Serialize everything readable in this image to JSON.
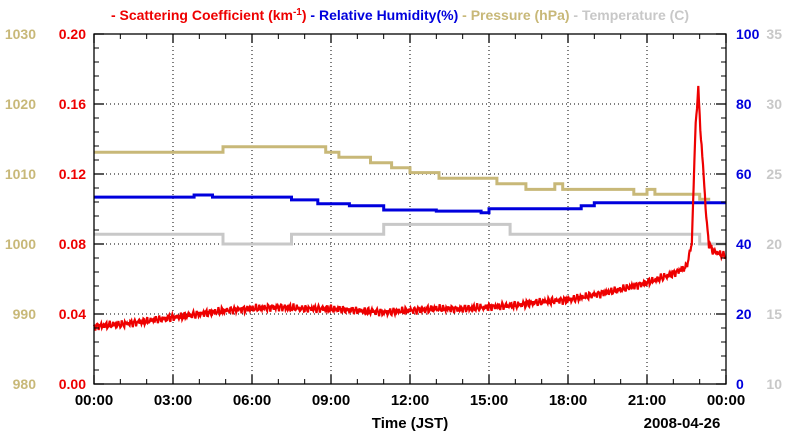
{
  "chart_data": {
    "type": "line",
    "title": "",
    "xlabel": "Time (JST)",
    "date_label": "2008-04-26",
    "x_ticks": [
      "00:00",
      "03:00",
      "06:00",
      "09:00",
      "12:00",
      "15:00",
      "18:00",
      "21:00",
      "00:00"
    ],
    "xlim_hours": [
      0,
      24
    ],
    "grid": true,
    "legend": {
      "position": "top",
      "entries": [
        {
          "key": "scattering",
          "bullet": "-",
          "text": "Scattering Coefficient (km",
          "sup": "-1",
          "suffix": ")"
        },
        {
          "key": "humidity",
          "bullet": "-",
          "text": "Relative Humidity(%)"
        },
        {
          "key": "pressure",
          "bullet": "-",
          "text": "Pressure (hPa)"
        },
        {
          "key": "temperature",
          "bullet": "-",
          "text": "Temperature (C)"
        }
      ]
    },
    "axes": {
      "pressure": {
        "side": "left-outer",
        "range": [
          980,
          1030
        ],
        "ticks": [
          "980",
          "990",
          "1000",
          "1010",
          "1020",
          "1030"
        ],
        "color": "#c8b878"
      },
      "scattering": {
        "side": "left-inner",
        "range": [
          0,
          0.2
        ],
        "ticks": [
          "0.00",
          "0.04",
          "0.08",
          "0.12",
          "0.16",
          "0.20"
        ],
        "color": "#ee0000"
      },
      "humidity": {
        "side": "right-inner",
        "range": [
          0,
          100
        ],
        "ticks": [
          "0",
          "20",
          "40",
          "60",
          "80",
          "100"
        ],
        "color": "#0000dd"
      },
      "temperature": {
        "side": "right-outer",
        "range": [
          10,
          35
        ],
        "ticks": [
          "10",
          "15",
          "20",
          "25",
          "30",
          "35"
        ],
        "color": "#c8c8c8"
      }
    },
    "series": [
      {
        "name": "Pressure (hPa)",
        "axis": "pressure",
        "color": "#c8b878",
        "style": "step",
        "points": [
          [
            0,
            1013.1
          ],
          [
            4.9,
            1013.1
          ],
          [
            4.9,
            1013.9
          ],
          [
            8.8,
            1013.9
          ],
          [
            8.8,
            1013.1
          ],
          [
            9.3,
            1013.1
          ],
          [
            9.3,
            1012.4
          ],
          [
            10.5,
            1012.4
          ],
          [
            10.5,
            1011.6
          ],
          [
            11.3,
            1011.6
          ],
          [
            11.3,
            1010.9
          ],
          [
            12.0,
            1010.9
          ],
          [
            12.0,
            1010.2
          ],
          [
            13.1,
            1010.2
          ],
          [
            13.1,
            1009.4
          ],
          [
            15.3,
            1009.4
          ],
          [
            15.3,
            1008.6
          ],
          [
            16.4,
            1008.6
          ],
          [
            16.4,
            1007.8
          ],
          [
            17.5,
            1007.8
          ],
          [
            17.5,
            1008.6
          ],
          [
            17.8,
            1008.6
          ],
          [
            17.8,
            1007.8
          ],
          [
            20.5,
            1007.8
          ],
          [
            20.5,
            1007.1
          ],
          [
            21.0,
            1007.1
          ],
          [
            21.0,
            1007.8
          ],
          [
            21.3,
            1007.8
          ],
          [
            21.3,
            1007.1
          ],
          [
            23.0,
            1007.1
          ],
          [
            23.0,
            1006.4
          ],
          [
            23.4,
            1006.4
          ]
        ]
      },
      {
        "name": "Relative Humidity(%)",
        "axis": "humidity",
        "color": "#0000dd",
        "style": "step",
        "points": [
          [
            0,
            53.4
          ],
          [
            3.8,
            53.4
          ],
          [
            3.8,
            54.0
          ],
          [
            4.5,
            54.0
          ],
          [
            4.5,
            53.4
          ],
          [
            7.5,
            53.4
          ],
          [
            7.5,
            52.6
          ],
          [
            8.5,
            52.6
          ],
          [
            8.5,
            51.5
          ],
          [
            9.7,
            51.5
          ],
          [
            9.7,
            50.9
          ],
          [
            11.0,
            50.9
          ],
          [
            11.0,
            49.7
          ],
          [
            13.0,
            49.7
          ],
          [
            13.0,
            49.4
          ],
          [
            14.7,
            49.4
          ],
          [
            14.7,
            48.9
          ],
          [
            15.0,
            48.9
          ],
          [
            15.0,
            50.1
          ],
          [
            18.5,
            50.1
          ],
          [
            18.5,
            50.9
          ],
          [
            19.0,
            50.9
          ],
          [
            19.0,
            51.8
          ],
          [
            24,
            51.8
          ]
        ]
      },
      {
        "name": "Temperature (C)",
        "axis": "temperature",
        "color": "#c8c8c8",
        "style": "step",
        "points": [
          [
            0,
            20.7
          ],
          [
            4.9,
            20.7
          ],
          [
            4.9,
            20.0
          ],
          [
            7.5,
            20.0
          ],
          [
            7.5,
            20.7
          ],
          [
            11.0,
            20.7
          ],
          [
            11.0,
            21.4
          ],
          [
            15.8,
            21.4
          ],
          [
            15.8,
            20.7
          ],
          [
            23.0,
            20.7
          ],
          [
            23.0,
            20.0
          ],
          [
            24,
            20.0
          ]
        ]
      },
      {
        "name": "Scattering Coefficient (km-1)",
        "axis": "scattering",
        "color": "#ee0000",
        "style": "line",
        "points": [
          [
            0,
            0.033
          ],
          [
            1,
            0.034
          ],
          [
            2,
            0.036
          ],
          [
            3,
            0.038
          ],
          [
            4,
            0.04
          ],
          [
            5,
            0.042
          ],
          [
            6,
            0.043
          ],
          [
            7,
            0.044
          ],
          [
            8,
            0.043
          ],
          [
            9,
            0.043
          ],
          [
            10,
            0.042
          ],
          [
            11,
            0.041
          ],
          [
            12,
            0.042
          ],
          [
            13,
            0.043
          ],
          [
            14,
            0.043
          ],
          [
            15,
            0.044
          ],
          [
            16,
            0.045
          ],
          [
            17,
            0.047
          ],
          [
            18,
            0.048
          ],
          [
            19,
            0.051
          ],
          [
            20,
            0.054
          ],
          [
            21,
            0.058
          ],
          [
            22,
            0.063
          ],
          [
            22.5,
            0.067
          ],
          [
            22.7,
            0.08
          ],
          [
            22.85,
            0.15
          ],
          [
            22.95,
            0.168
          ],
          [
            23.05,
            0.14
          ],
          [
            23.15,
            0.12
          ],
          [
            23.25,
            0.095
          ],
          [
            23.35,
            0.08
          ],
          [
            23.5,
            0.076
          ],
          [
            24,
            0.073
          ]
        ]
      }
    ]
  }
}
